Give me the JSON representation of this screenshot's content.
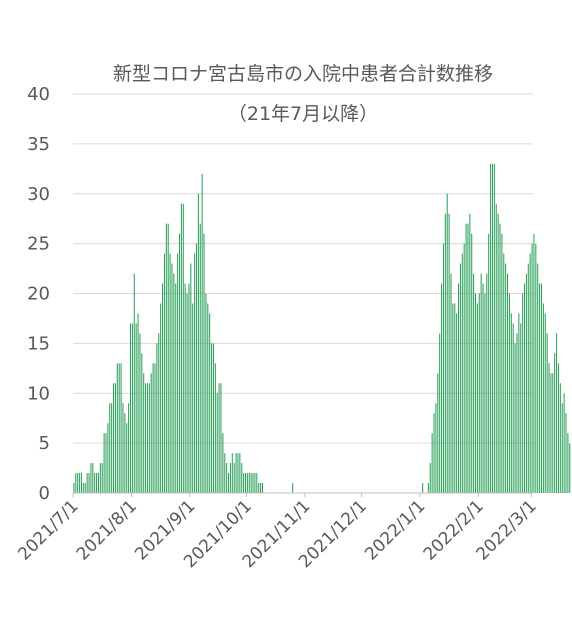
{
  "chart_data": {
    "type": "bar",
    "title": "新型コロナ宮古島市の入院中患者合計数推移",
    "subtitle": "（21年7月以降）",
    "xlabel": "",
    "ylabel": "",
    "ylim": [
      0,
      40
    ],
    "yticks": [
      0,
      5,
      10,
      15,
      20,
      25,
      30,
      35,
      40
    ],
    "x_start": "2021/7/1",
    "x_end": "2022/3/2",
    "xticks": [
      "2021/7/1",
      "2021/8/1",
      "2021/9/1",
      "2021/10/1",
      "2021/11/1",
      "2021/12/1",
      "2022/1/1",
      "2022/2/1",
      "2022/3/1"
    ],
    "grid": true,
    "legend": "none",
    "bar_color": "#2ca05a",
    "series": [
      {
        "values": [
          1,
          2,
          2,
          2,
          2,
          1,
          1,
          2,
          2,
          3,
          3,
          2,
          2,
          2,
          3,
          3,
          6,
          6,
          7,
          9,
          9,
          11,
          11,
          13,
          13,
          13,
          9,
          8,
          7,
          9,
          17,
          17,
          22,
          17,
          18,
          16,
          14,
          12,
          11,
          11,
          11,
          12,
          13,
          13,
          15,
          16,
          19,
          21,
          24,
          27,
          27,
          24,
          23,
          22,
          21,
          24,
          26,
          29,
          29,
          21,
          20,
          21,
          23,
          19,
          24,
          25,
          30,
          27,
          32,
          26,
          20,
          19,
          18,
          15,
          15,
          13,
          10,
          11,
          11,
          6,
          4,
          3,
          2,
          3,
          4,
          3,
          4,
          4,
          4,
          3,
          2,
          2,
          2,
          2,
          2,
          2,
          2,
          2,
          1,
          1,
          1,
          0,
          0,
          0,
          0,
          0,
          0,
          0,
          0,
          0,
          0,
          0,
          0,
          0,
          0,
          0,
          1,
          0,
          0,
          0,
          0,
          0,
          0,
          0,
          0,
          0,
          0,
          0,
          0,
          0,
          0,
          0,
          0,
          0,
          0,
          0,
          0,
          0,
          0,
          0,
          0,
          0,
          0,
          0,
          0,
          0,
          0,
          0,
          0,
          0,
          0,
          0,
          0,
          0,
          0,
          0,
          0,
          0,
          0,
          0,
          0,
          0,
          0,
          0,
          0,
          0,
          0,
          0,
          0,
          0,
          0,
          0,
          0,
          0,
          0,
          0,
          0,
          0,
          0,
          0,
          0,
          0,
          0,
          0,
          0,
          1,
          0,
          0,
          1,
          3,
          6,
          8,
          9,
          12,
          16,
          21,
          25,
          28,
          30,
          28,
          22,
          19,
          19,
          18,
          21,
          23,
          24,
          25,
          27,
          27,
          28,
          26,
          22,
          20,
          19,
          20,
          22,
          21,
          20,
          22,
          26,
          33,
          33,
          33,
          29,
          28,
          27,
          26,
          24,
          23,
          22,
          20,
          18,
          17,
          15,
          16,
          18,
          17,
          20,
          21,
          22,
          23,
          24,
          25,
          26,
          25,
          23,
          21,
          21,
          19,
          18,
          16,
          13,
          12,
          12,
          14,
          16,
          13,
          11,
          9,
          10,
          8,
          6,
          5
        ]
      }
    ]
  }
}
